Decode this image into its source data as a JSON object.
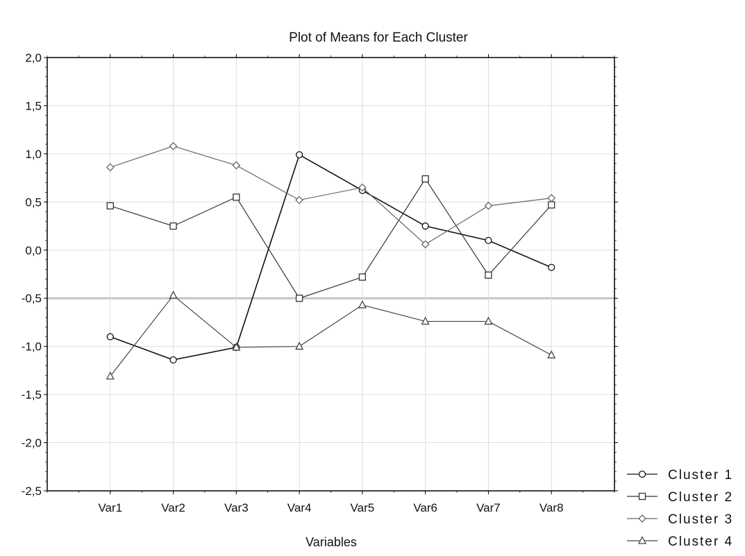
{
  "chart_data": {
    "type": "line",
    "title": "Plot of Means for Each Cluster",
    "xlabel": "Variables",
    "ylabel": "",
    "categories": [
      "Var1",
      "Var2",
      "Var3",
      "Var4",
      "Var5",
      "Var6",
      "Var7",
      "Var8"
    ],
    "ylim": [
      -2.5,
      2.0
    ],
    "yticks": [
      2.0,
      1.5,
      1.0,
      0.5,
      0.0,
      -0.5,
      -1.0,
      -1.5,
      -2.0,
      -2.5
    ],
    "ytick_labels": [
      "2,0",
      "1,5",
      "1,0",
      "0,5",
      "0,0",
      "-0,5",
      "-1,0",
      "-1,5",
      "-2,0",
      "-2,5"
    ],
    "grid": true,
    "legend_position": "bottom-right",
    "series": [
      {
        "name": "Cluster 1",
        "marker": "circle",
        "color": "#111111",
        "values": [
          -0.9,
          -1.14,
          -1.01,
          0.99,
          0.62,
          0.25,
          0.1,
          -0.18
        ]
      },
      {
        "name": "Cluster 2",
        "marker": "square",
        "color": "#333333",
        "values": [
          0.46,
          0.25,
          0.55,
          -0.5,
          -0.28,
          0.74,
          -0.26,
          0.47
        ]
      },
      {
        "name": "Cluster 3",
        "marker": "diamond",
        "color": "#666666",
        "values": [
          0.86,
          1.08,
          0.88,
          0.52,
          0.65,
          0.06,
          0.46,
          0.54
        ]
      },
      {
        "name": "Cluster 4",
        "marker": "triangle",
        "color": "#444444",
        "values": [
          -1.31,
          -0.47,
          -1.01,
          -1.0,
          -0.57,
          -0.74,
          -0.74,
          -1.09
        ]
      }
    ]
  }
}
